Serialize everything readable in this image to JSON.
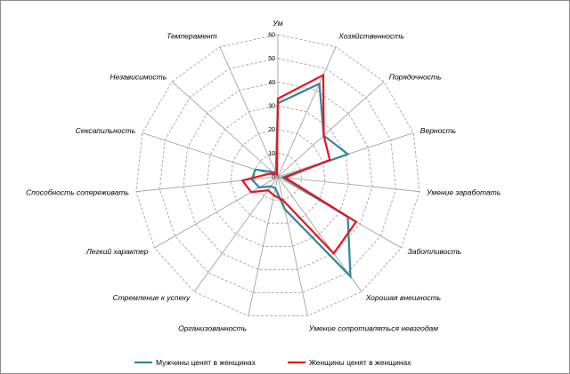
{
  "chart_data": {
    "type": "radar",
    "axes": [
      "Ум",
      "Хозяйственность",
      "Порядочность",
      "Верность",
      "Умение заработать",
      "Заботливость",
      "Хорошая внешность",
      "Умение сопротивляться невзгодам",
      "Организованность",
      "Стремление к успеху",
      "Легкий характер",
      "Способность сопереживать",
      "Сексапильность",
      "Независимость",
      "Темперамент"
    ],
    "rlim": [
      0,
      60
    ],
    "ticks": [
      "0",
      "10",
      "20",
      "30",
      "40",
      "50",
      "60"
    ],
    "grid": true,
    "legend": "bottom",
    "series": [
      {
        "name": "Мужчины ценят в женщинах",
        "color": "#31859c",
        "values": [
          31,
          43,
          26,
          31,
          2,
          34,
          52,
          14,
          5,
          5,
          9,
          11,
          10,
          3,
          2
        ]
      },
      {
        "name": "Женщины ценят в женщинах",
        "color": "#e8131c",
        "values": [
          33,
          47,
          26,
          23,
          3,
          38,
          40,
          10,
          8,
          7,
          13,
          15,
          4,
          2,
          1
        ]
      }
    ]
  }
}
